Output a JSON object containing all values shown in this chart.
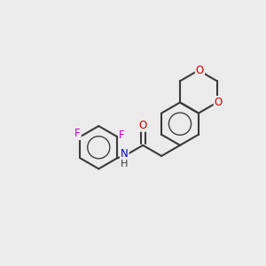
{
  "bg_color": "#ebebeb",
  "bond_color": "#3a3a3a",
  "bond_width": 1.5,
  "F_color": "#cc00cc",
  "O_color": "#cc0000",
  "N_color": "#0000cc",
  "C_color": "#3a3a3a",
  "font_size_atom": 8.5,
  "fig_size": [
    3.0,
    3.0
  ],
  "dpi": 100,
  "xlim": [
    0,
    10
  ],
  "ylim": [
    0,
    10
  ]
}
